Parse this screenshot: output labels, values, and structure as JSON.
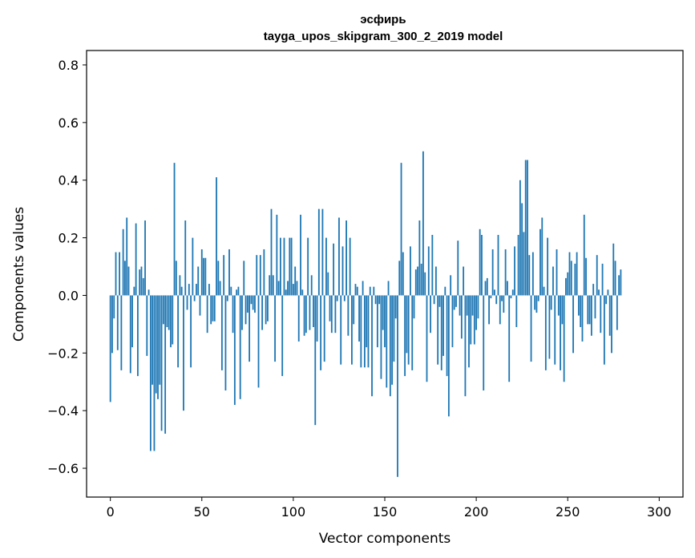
{
  "chart_data": {
    "type": "bar",
    "title_line1": "эсфирь",
    "title_line2": "tayga_upos_skipgram_300_2_2019 model",
    "xlabel": "Vector components",
    "ylabel": "Components values",
    "xlim": [
      -13,
      313
    ],
    "ylim": [
      -0.7,
      0.85
    ],
    "xticks": [
      0,
      50,
      100,
      150,
      200,
      250,
      300
    ],
    "xtick_labels": [
      "0",
      "50",
      "100",
      "150",
      "200",
      "250",
      "300"
    ],
    "yticks": [
      -0.6,
      -0.4,
      -0.2,
      0.0,
      0.2,
      0.4,
      0.6,
      0.8
    ],
    "ytick_labels": [
      "−0.6",
      "−0.4",
      "−0.2",
      "0.0",
      "0.2",
      "0.4",
      "0.6",
      "0.8"
    ],
    "color": "#1f77b4",
    "values": [
      -0.37,
      -0.2,
      -0.08,
      0.15,
      -0.19,
      0.15,
      -0.26,
      0.23,
      0.12,
      0.27,
      0.1,
      -0.27,
      -0.18,
      0.03,
      0.25,
      -0.28,
      0.09,
      0.1,
      0.06,
      0.26,
      -0.21,
      0.02,
      -0.54,
      -0.31,
      -0.54,
      -0.34,
      -0.36,
      -0.31,
      -0.47,
      -0.1,
      -0.48,
      -0.11,
      -0.12,
      -0.18,
      -0.17,
      0.46,
      0.12,
      -0.25,
      0.07,
      0.03,
      -0.4,
      0.26,
      -0.05,
      0.04,
      -0.25,
      0.2,
      -0.02,
      0.04,
      0.1,
      -0.07,
      0.16,
      0.13,
      0.13,
      -0.13,
      0.04,
      -0.1,
      -0.09,
      -0.09,
      0.41,
      0.12,
      0.05,
      -0.26,
      0.14,
      -0.33,
      -0.02,
      0.16,
      0.03,
      -0.13,
      -0.38,
      0.02,
      0.03,
      -0.36,
      -0.12,
      0.12,
      -0.1,
      -0.06,
      -0.23,
      -0.03,
      -0.05,
      -0.06,
      0.14,
      -0.32,
      0.14,
      -0.12,
      0.16,
      -0.1,
      -0.09,
      0.07,
      0.3,
      0.07,
      -0.23,
      0.28,
      0.05,
      0.2,
      -0.28,
      0.2,
      0.02,
      0.05,
      0.2,
      0.2,
      0.04,
      0.1,
      0.05,
      -0.16,
      0.28,
      0.02,
      -0.14,
      -0.13,
      0.2,
      -0.12,
      0.07,
      -0.11,
      -0.45,
      -0.16,
      0.3,
      -0.26,
      0.3,
      -0.23,
      0.2,
      0.08,
      -0.09,
      -0.13,
      0.18,
      -0.13,
      -0.02,
      0.27,
      -0.24,
      0.17,
      -0.02,
      0.26,
      -0.14,
      0.2,
      -0.24,
      -0.1,
      0.04,
      0.03,
      -0.16,
      -0.25,
      0.05,
      -0.25,
      -0.18,
      -0.25,
      0.03,
      -0.35,
      0.03,
      -0.03,
      -0.18,
      -0.03,
      -0.29,
      -0.12,
      -0.18,
      -0.32,
      0.05,
      -0.35,
      -0.31,
      -0.23,
      -0.08,
      -0.63,
      0.12,
      0.46,
      0.15,
      -0.28,
      -0.2,
      -0.24,
      0.17,
      -0.26,
      -0.08,
      0.09,
      0.1,
      0.26,
      0.11,
      0.5,
      0.08,
      -0.3,
      0.17,
      -0.13,
      0.21,
      -0.03,
      0.1,
      -0.24,
      -0.04,
      -0.26,
      -0.21,
      0.03,
      -0.28,
      -0.42,
      0.07,
      -0.18,
      -0.05,
      -0.04,
      0.19,
      -0.07,
      -0.15,
      0.1,
      -0.35,
      -0.07,
      -0.25,
      -0.17,
      -0.07,
      -0.17,
      -0.12,
      -0.08,
      0.23,
      0.21,
      -0.33,
      0.05,
      0.06,
      -0.1,
      -0.01,
      0.16,
      0.02,
      -0.03,
      0.21,
      -0.1,
      -0.02,
      -0.06,
      0.16,
      0.05,
      -0.3,
      -0.01,
      0.02,
      0.17,
      -0.11,
      0.21,
      0.4,
      0.32,
      0.22,
      0.47,
      0.47,
      0.14,
      -0.23,
      0.15,
      -0.05,
      -0.06,
      -0.02,
      0.23,
      0.27,
      0.03,
      -0.26,
      0.2,
      -0.22,
      -0.05,
      0.1,
      -0.24,
      0.16,
      -0.07,
      -0.26,
      -0.1,
      -0.3,
      0.06,
      0.08,
      0.15,
      0.12,
      -0.2,
      0.11,
      0.15,
      -0.07,
      -0.11,
      -0.16,
      0.28,
      0.13,
      -0.1,
      -0.1,
      -0.14,
      0.04,
      -0.08,
      0.14,
      0.02,
      -0.13,
      0.11,
      -0.24,
      -0.03,
      0.02,
      -0.14,
      -0.2,
      0.18,
      0.12,
      -0.12,
      0.07,
      0.09
    ]
  }
}
